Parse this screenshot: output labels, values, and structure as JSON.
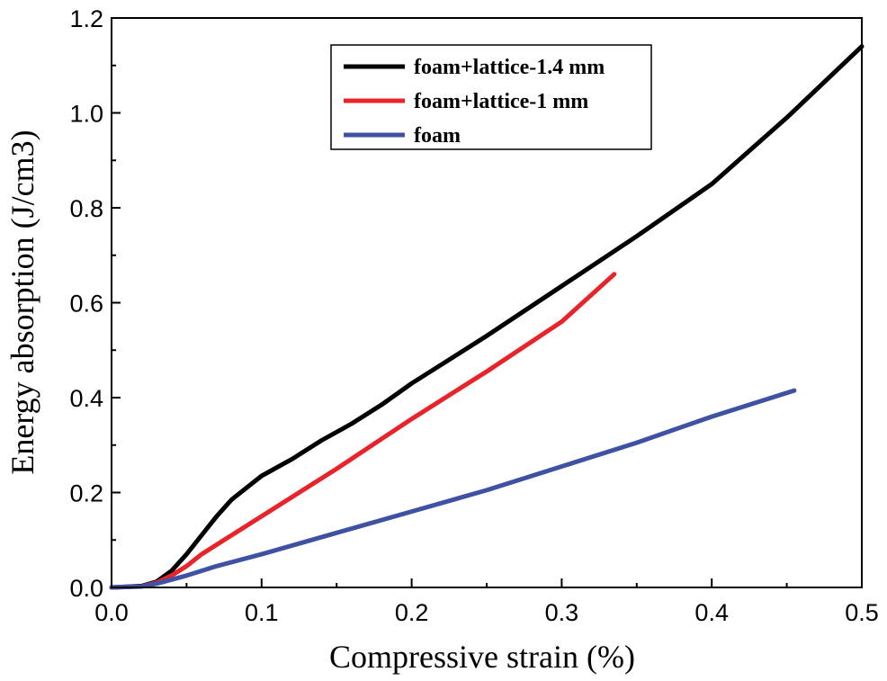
{
  "chart_data": {
    "type": "line",
    "title": "",
    "xlabel": "Compressive strain (%)",
    "ylabel": "Energy absorption (J/cm3)",
    "xlim": [
      0.0,
      0.5
    ],
    "ylim": [
      0.0,
      1.2
    ],
    "xticks": [
      "0.0",
      "0.1",
      "0.2",
      "0.3",
      "0.4",
      "0.5"
    ],
    "yticks": [
      "0.0",
      "0.2",
      "0.4",
      "0.6",
      "0.8",
      "1.0",
      "1.2"
    ],
    "legend_position": "top-right",
    "grid": false,
    "series": [
      {
        "name": "foam+lattice-1.4 mm",
        "color": "#000000",
        "points": [
          [
            0.0,
            0.0
          ],
          [
            0.02,
            0.003
          ],
          [
            0.03,
            0.012
          ],
          [
            0.04,
            0.035
          ],
          [
            0.05,
            0.07
          ],
          [
            0.06,
            0.11
          ],
          [
            0.07,
            0.15
          ],
          [
            0.08,
            0.185
          ],
          [
            0.09,
            0.21
          ],
          [
            0.1,
            0.235
          ],
          [
            0.12,
            0.27
          ],
          [
            0.14,
            0.31
          ],
          [
            0.16,
            0.345
          ],
          [
            0.18,
            0.385
          ],
          [
            0.2,
            0.43
          ],
          [
            0.25,
            0.53
          ],
          [
            0.3,
            0.635
          ],
          [
            0.35,
            0.74
          ],
          [
            0.4,
            0.85
          ],
          [
            0.45,
            0.99
          ],
          [
            0.5,
            1.14
          ]
        ]
      },
      {
        "name": "foam+lattice-1 mm",
        "color": "#e8242a",
        "points": [
          [
            0.0,
            0.0
          ],
          [
            0.02,
            0.002
          ],
          [
            0.03,
            0.01
          ],
          [
            0.04,
            0.025
          ],
          [
            0.05,
            0.045
          ],
          [
            0.06,
            0.07
          ],
          [
            0.08,
            0.11
          ],
          [
            0.1,
            0.15
          ],
          [
            0.15,
            0.25
          ],
          [
            0.2,
            0.355
          ],
          [
            0.25,
            0.455
          ],
          [
            0.3,
            0.56
          ],
          [
            0.335,
            0.66
          ]
        ]
      },
      {
        "name": "foam",
        "color": "#3f51a3",
        "points": [
          [
            0.0,
            0.0
          ],
          [
            0.02,
            0.002
          ],
          [
            0.03,
            0.008
          ],
          [
            0.05,
            0.025
          ],
          [
            0.07,
            0.045
          ],
          [
            0.1,
            0.07
          ],
          [
            0.15,
            0.115
          ],
          [
            0.2,
            0.16
          ],
          [
            0.25,
            0.205
          ],
          [
            0.3,
            0.255
          ],
          [
            0.35,
            0.305
          ],
          [
            0.4,
            0.36
          ],
          [
            0.455,
            0.415
          ]
        ]
      }
    ]
  }
}
